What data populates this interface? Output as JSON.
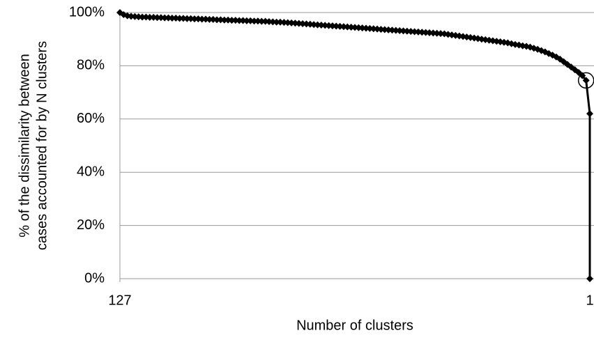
{
  "chart_data": {
    "type": "line",
    "xlabel": "Number of clusters",
    "ylabel": [
      "% of the dissimilarity between",
      "cases accounted for by N clusters"
    ],
    "x": [
      127,
      126,
      125,
      124,
      123,
      122,
      121,
      120,
      119,
      118,
      117,
      116,
      115,
      114,
      113,
      112,
      111,
      110,
      109,
      108,
      107,
      106,
      105,
      104,
      103,
      102,
      101,
      100,
      99,
      98,
      97,
      96,
      95,
      94,
      93,
      92,
      91,
      90,
      89,
      88,
      87,
      86,
      85,
      84,
      83,
      82,
      81,
      80,
      79,
      78,
      77,
      76,
      75,
      74,
      73,
      72,
      71,
      70,
      69,
      68,
      67,
      66,
      65,
      64,
      63,
      62,
      61,
      60,
      59,
      58,
      57,
      56,
      55,
      54,
      53,
      52,
      51,
      50,
      49,
      48,
      47,
      46,
      45,
      44,
      43,
      42,
      41,
      40,
      39,
      38,
      37,
      36,
      35,
      34,
      33,
      32,
      31,
      30,
      29,
      28,
      27,
      26,
      25,
      24,
      23,
      22,
      21,
      20,
      19,
      18,
      17,
      16,
      15,
      14,
      13,
      12,
      11,
      10,
      9,
      8,
      7,
      6,
      5,
      4,
      3,
      2,
      1,
      1
    ],
    "values": [
      100,
      99.2,
      98.8,
      98.6,
      98.5,
      98.4,
      98.3,
      98.3,
      98.2,
      98.2,
      98.1,
      98.1,
      98.0,
      98.0,
      97.9,
      97.9,
      97.8,
      97.8,
      97.7,
      97.7,
      97.6,
      97.6,
      97.5,
      97.5,
      97.4,
      97.4,
      97.3,
      97.3,
      97.2,
      97.2,
      97.1,
      97.1,
      97.0,
      97.0,
      96.9,
      96.9,
      96.8,
      96.8,
      96.7,
      96.7,
      96.6,
      96.5,
      96.4,
      96.4,
      96.3,
      96.2,
      96.1,
      96.0,
      95.9,
      95.8,
      95.7,
      95.6,
      95.5,
      95.4,
      95.3,
      95.2,
      95.1,
      95.0,
      94.9,
      94.8,
      94.7,
      94.6,
      94.5,
      94.4,
      94.3,
      94.2,
      94.1,
      94.0,
      93.9,
      93.8,
      93.7,
      93.6,
      93.5,
      93.4,
      93.3,
      93.2,
      93.1,
      93.0,
      92.9,
      92.8,
      92.7,
      92.6,
      92.5,
      92.4,
      92.3,
      92.2,
      92.1,
      92.0,
      91.8,
      91.6,
      91.4,
      91.2,
      91.0,
      90.8,
      90.6,
      90.4,
      90.2,
      90.0,
      89.8,
      89.6,
      89.4,
      89.2,
      89.0,
      88.8,
      88.6,
      88.3,
      88.0,
      87.8,
      87.5,
      87.3,
      87.0,
      86.6,
      86.2,
      85.7,
      85.2,
      84.6,
      84.0,
      83.3,
      82.5,
      81.5,
      80.5,
      79.5,
      78.5,
      77.5,
      76.3,
      74.5,
      62,
      0
    ],
    "color": "#000000",
    "highlight_x": 2,
    "xlim": [
      127,
      1
    ],
    "xticks": [
      127,
      1
    ],
    "ylim": [
      0,
      100
    ],
    "yticks": [
      {
        "value": 0,
        "label": "0%"
      },
      {
        "value": 20,
        "label": "20%"
      },
      {
        "value": 40,
        "label": "40%"
      },
      {
        "value": 60,
        "label": "60%"
      },
      {
        "value": 80,
        "label": "80%"
      },
      {
        "value": 100,
        "label": "100%"
      }
    ],
    "grid": true
  }
}
